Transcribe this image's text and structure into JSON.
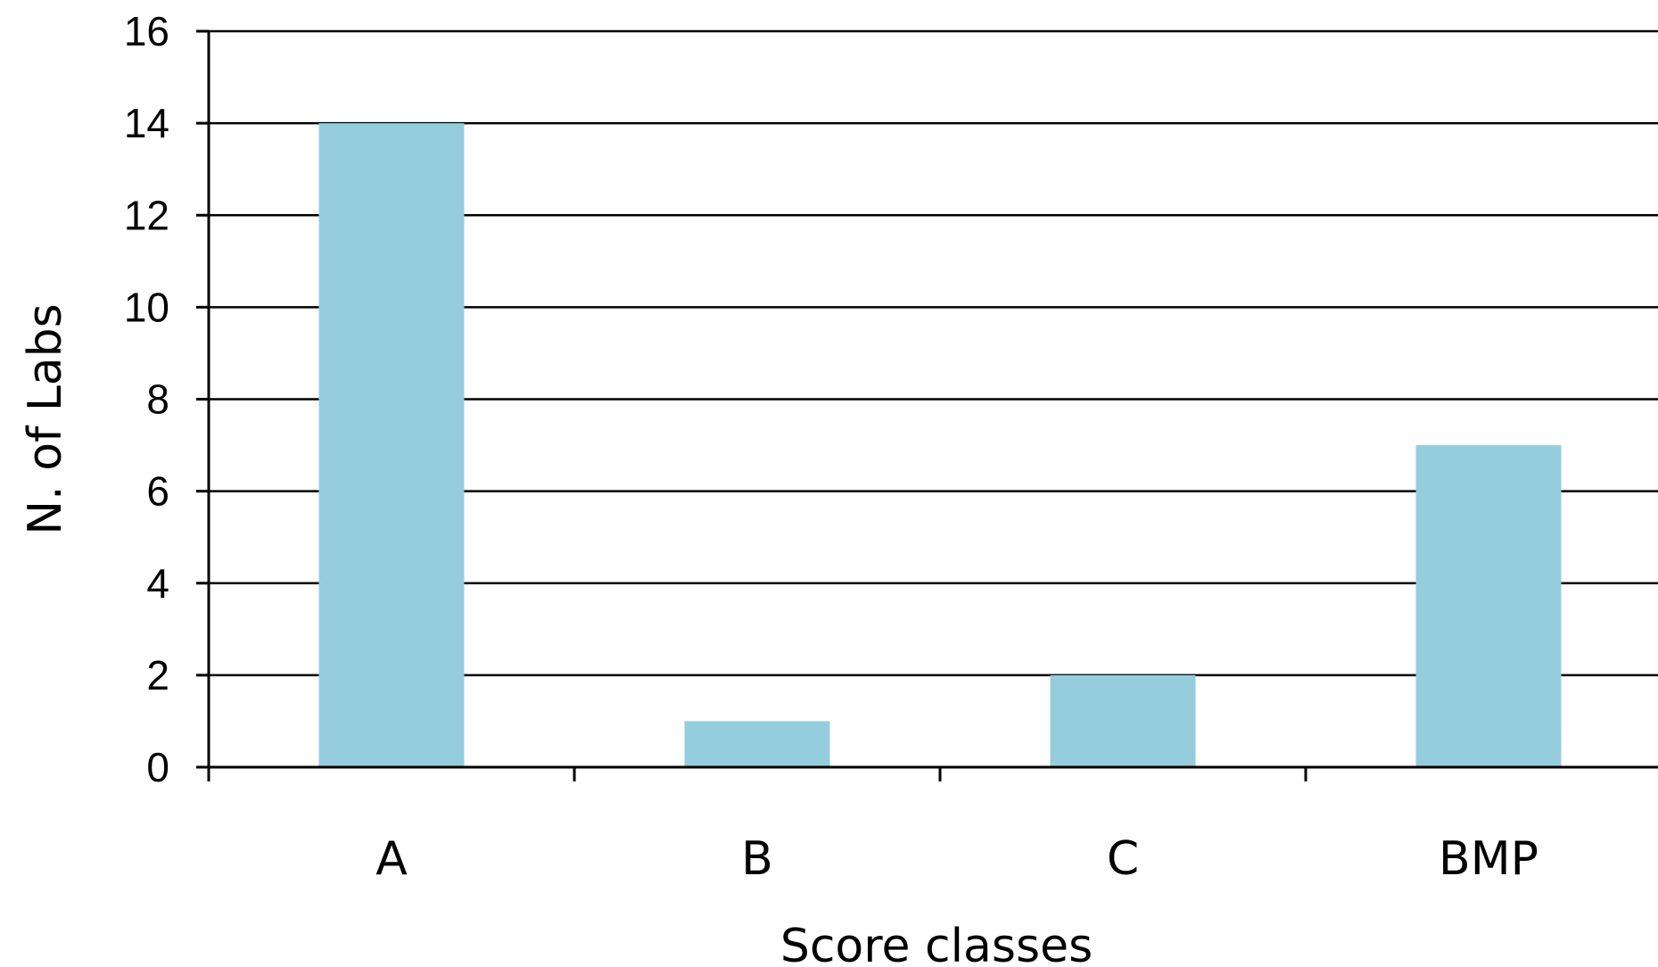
{
  "chart_data": {
    "type": "bar",
    "title": "",
    "xlabel": "Score classes",
    "ylabel": "N. of Labs",
    "categories": [
      "A",
      "B",
      "C",
      "BMP"
    ],
    "values": [
      14,
      1,
      2,
      7
    ],
    "ylim": [
      0,
      16
    ],
    "yticks": [
      0,
      2,
      4,
      6,
      8,
      10,
      12,
      14,
      16
    ],
    "grid": true,
    "legend": "none",
    "bar_color": "#96cddd",
    "grid_color": "#000000"
  }
}
